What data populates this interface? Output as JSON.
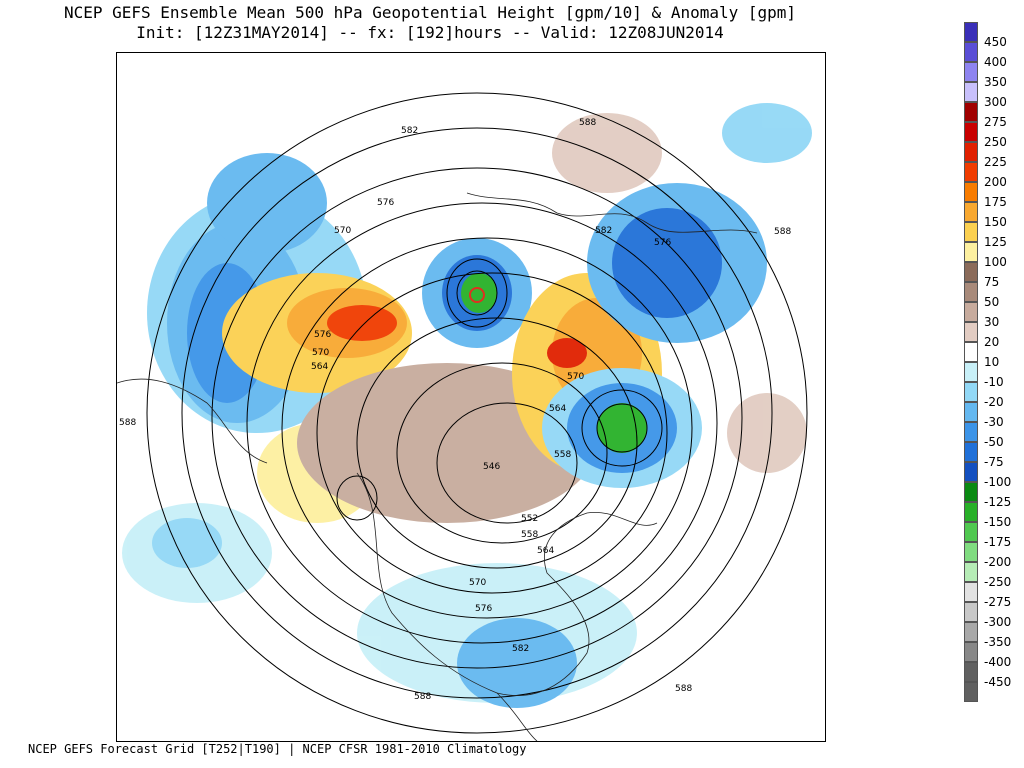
{
  "title": {
    "line1": "NCEP GEFS Ensemble Mean 500 hPa Geopotential Height [gpm/10] & Anomaly [gpm]",
    "line2": "Init: [12Z31MAY2014] -- fx: [192]hours -- Valid: 12Z08JUN2014"
  },
  "footer": "NCEP GEFS Forecast Grid [T252|T190] | NCEP CFSR 1981-2010 Climatology",
  "contour_labels": [
    "582",
    "588",
    "576",
    "570",
    "582",
    "576",
    "588",
    "576",
    "570",
    "564",
    "570",
    "564",
    "558",
    "546",
    "552",
    "558",
    "564",
    "570",
    "576",
    "582",
    "588",
    "588",
    "588"
  ],
  "colorbar": [
    {
      "label": "450",
      "color": "#3a2fb8"
    },
    {
      "label": "400",
      "color": "#5a4ed6"
    },
    {
      "label": "350",
      "color": "#8e84f0"
    },
    {
      "label": "300",
      "color": "#c8c0fb"
    },
    {
      "label": "275",
      "color": "#a00000"
    },
    {
      "label": "250",
      "color": "#c80000"
    },
    {
      "label": "225",
      "color": "#e02000"
    },
    {
      "label": "200",
      "color": "#f03c00"
    },
    {
      "label": "175",
      "color": "#f87c00"
    },
    {
      "label": "150",
      "color": "#f8a830"
    },
    {
      "label": "125",
      "color": "#fbd050"
    },
    {
      "label": "100",
      "color": "#fdf0a0"
    },
    {
      "label": "75",
      "color": "#8b6b5a"
    },
    {
      "label": "50",
      "color": "#a88a7a"
    },
    {
      "label": "30",
      "color": "#c7ab9d"
    },
    {
      "label": "20",
      "color": "#e2ccc2"
    },
    {
      "label": "10",
      "color": "#ffffff"
    },
    {
      "label": "-10",
      "color": "#c8f0f8"
    },
    {
      "label": "-20",
      "color": "#92d8f6"
    },
    {
      "label": "-30",
      "color": "#64b8f0"
    },
    {
      "label": "-50",
      "color": "#3c94e8"
    },
    {
      "label": "-75",
      "color": "#2070d8"
    },
    {
      "label": "-100",
      "color": "#1450c0"
    },
    {
      "label": "-125",
      "color": "#0a8a12"
    },
    {
      "label": "-150",
      "color": "#28b028"
    },
    {
      "label": "-175",
      "color": "#50c850"
    },
    {
      "label": "-200",
      "color": "#80dc80"
    },
    {
      "label": "-250",
      "color": "#b6ecb6"
    },
    {
      "label": "-275",
      "color": "#e2e2e2"
    },
    {
      "label": "-300",
      "color": "#c8c8c8"
    },
    {
      "label": "-350",
      "color": "#a8a8a8"
    },
    {
      "label": "-400",
      "color": "#888888"
    },
    {
      "label": "-450",
      "color": "#606060"
    }
  ],
  "colorbar_final": {
    "color": "#606060"
  }
}
